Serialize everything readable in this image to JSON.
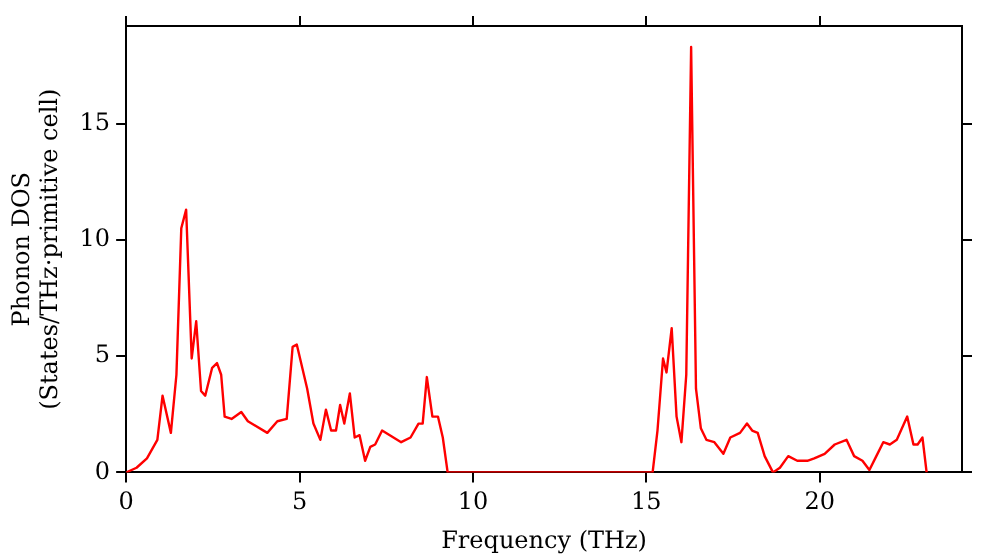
{
  "chart_data": {
    "type": "line",
    "xlabel": "Frequency (THz)",
    "ylabel": "Phonon DOS\n(States/THz·primitive cell)",
    "xlim": [
      0,
      24.1
    ],
    "ylim": [
      0,
      19.2
    ],
    "xticks": [
      0,
      5,
      10,
      15,
      20
    ],
    "yticks": [
      0,
      5,
      10,
      15
    ],
    "grid": false,
    "legend": false,
    "marker": "none",
    "line_style": "solid",
    "series": [
      {
        "color": "#ff0000",
        "x": [
          0,
          0.3,
          0.6,
          0.9,
          1.05,
          1.29,
          1.45,
          1.59,
          1.73,
          1.89,
          2.02,
          2.16,
          2.28,
          2.48,
          2.62,
          2.74,
          2.84,
          3.04,
          3.32,
          3.51,
          4.07,
          4.36,
          4.63,
          4.8,
          4.92,
          5.22,
          5.4,
          5.6,
          5.76,
          5.91,
          6.05,
          6.17,
          6.29,
          6.45,
          6.59,
          6.73,
          6.89,
          7.04,
          7.18,
          7.38,
          7.93,
          8.2,
          8.43,
          8.55,
          8.67,
          8.83,
          8.99,
          9.13,
          9.27,
          15.18,
          15.32,
          15.48,
          15.58,
          15.73,
          15.87,
          16.01,
          16.15,
          16.29,
          16.43,
          16.57,
          16.73,
          16.96,
          17.22,
          17.42,
          17.7,
          17.9,
          18.05,
          18.21,
          18.41,
          18.65,
          18.85,
          19.09,
          19.35,
          19.64,
          19.84,
          20.14,
          20.43,
          20.77,
          20.99,
          21.23,
          21.43,
          21.63,
          21.83,
          22.02,
          22.22,
          22.52,
          22.7,
          22.82,
          22.96,
          23.08
        ],
        "values": [
          0,
          0.2,
          0.6,
          1.4,
          3.3,
          1.7,
          4.2,
          10.5,
          11.3,
          4.9,
          6.5,
          3.5,
          3.3,
          4.5,
          4.7,
          4.2,
          2.4,
          2.3,
          2.6,
          2.2,
          1.7,
          2.2,
          2.3,
          5.4,
          5.5,
          3.6,
          2.1,
          1.4,
          2.7,
          1.8,
          1.8,
          2.9,
          2.1,
          3.4,
          1.5,
          1.6,
          0.5,
          1.1,
          1.2,
          1.8,
          1.3,
          1.5,
          2.1,
          2.1,
          4.1,
          2.4,
          2.4,
          1.5,
          0,
          0,
          1.8,
          4.9,
          4.3,
          6.2,
          2.4,
          1.3,
          4.2,
          18.3,
          3.6,
          1.9,
          1.4,
          1.3,
          0.8,
          1.5,
          1.7,
          2.1,
          1.8,
          1.7,
          0.7,
          0,
          0.2,
          0.7,
          0.5,
          0.5,
          0.6,
          0.8,
          1.2,
          1.4,
          0.7,
          0.5,
          0.1,
          0.7,
          1.3,
          1.2,
          1.4,
          2.4,
          1.2,
          1.2,
          1.5,
          0
        ]
      }
    ]
  }
}
